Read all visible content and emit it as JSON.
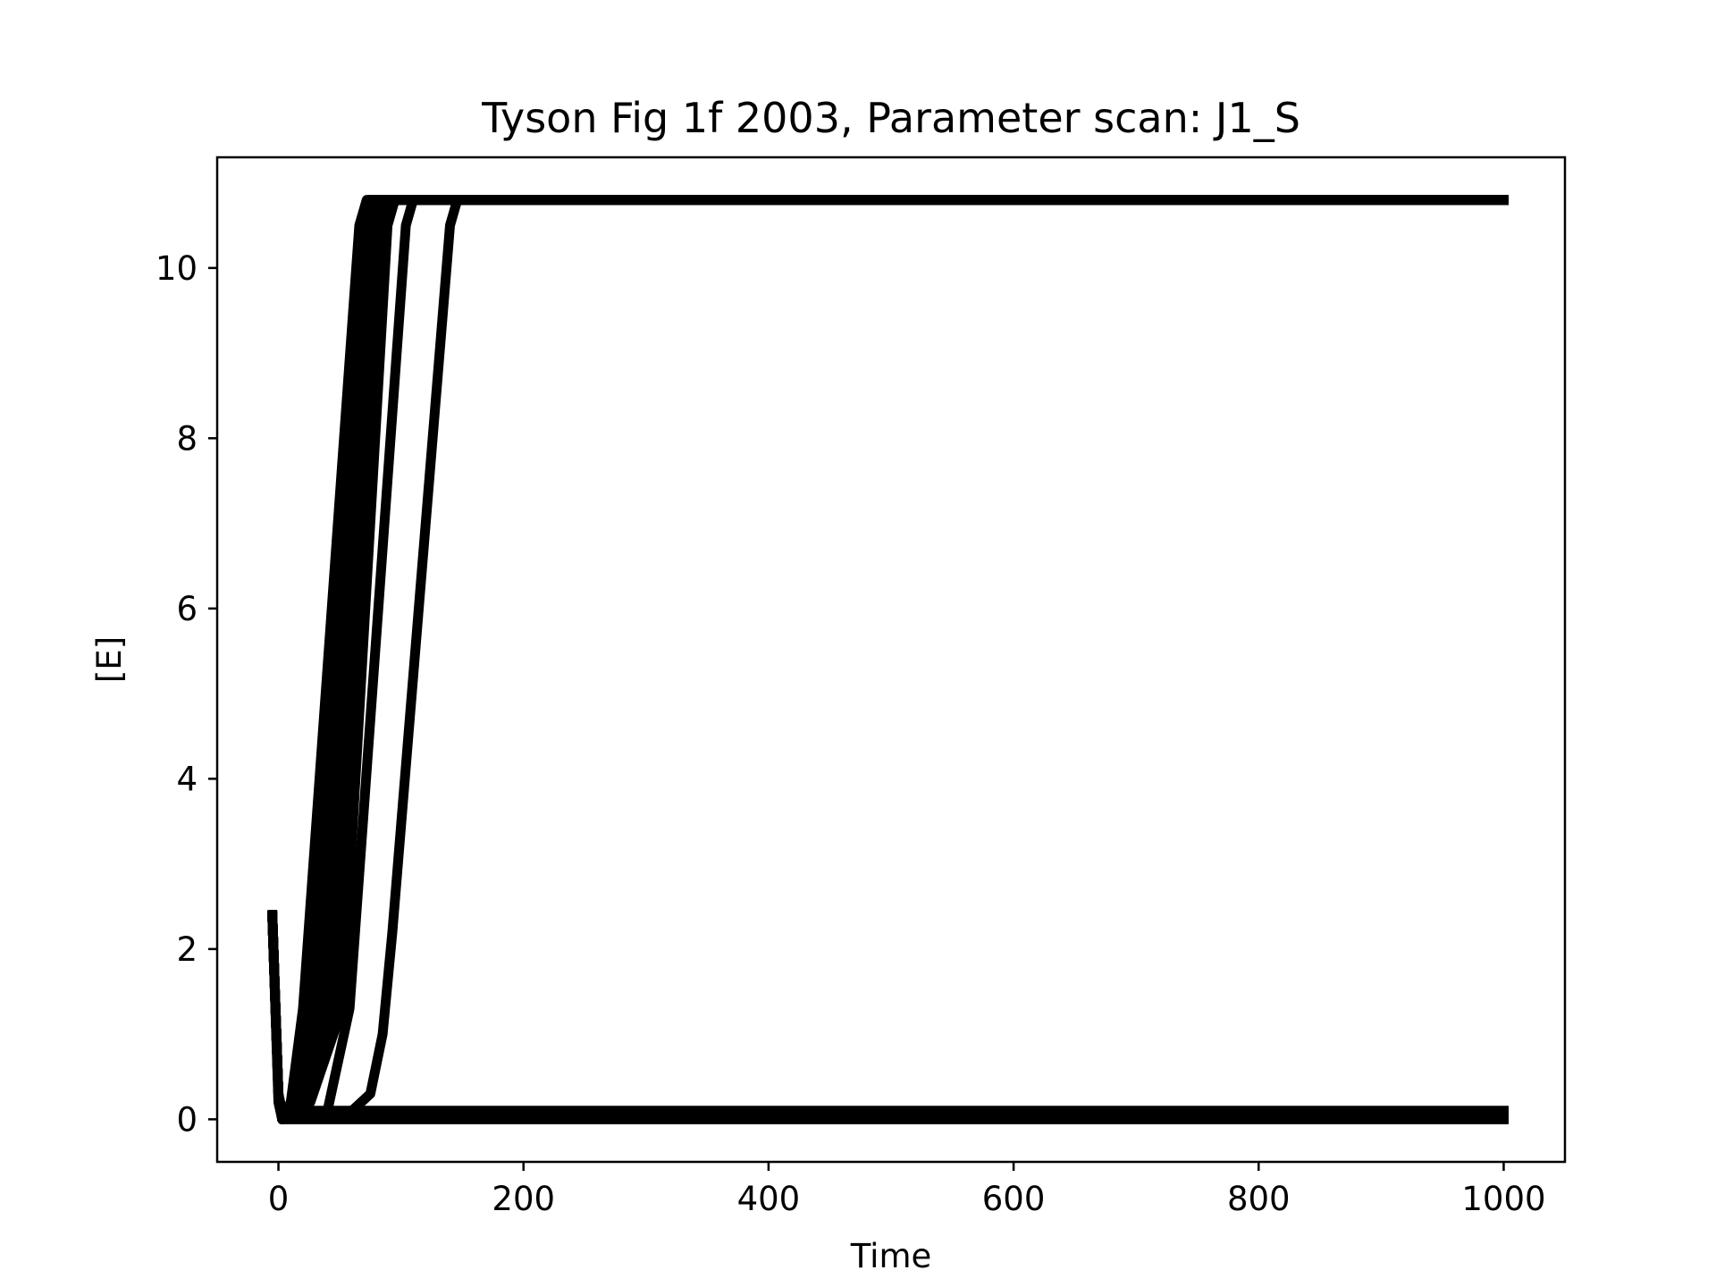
{
  "chart_data": {
    "type": "line",
    "title": "Tyson Fig 1f 2003, Parameter scan: J1_S",
    "xlabel": "Time",
    "ylabel": "[E]",
    "xlim": [
      -50,
      1050
    ],
    "ylim": [
      -0.5,
      11.3
    ],
    "xticks": [
      0,
      200,
      400,
      600,
      800,
      1000
    ],
    "yticks": [
      0,
      2,
      4,
      6,
      8,
      10
    ],
    "grid": false,
    "line_color": "#000000",
    "series": [
      {
        "x": [
          -5,
          0,
          3,
          1000
        ],
        "y": [
          2.4,
          0.3,
          0.1,
          0.1
        ]
      },
      {
        "x": [
          -5,
          0,
          3,
          1000
        ],
        "y": [
          2.4,
          0.2,
          0.0,
          0.0
        ]
      },
      {
        "x": [
          -5,
          0,
          3,
          10,
          20,
          66,
          72,
          1000
        ],
        "y": [
          2.4,
          0.3,
          0.0,
          0.2,
          1.3,
          10.5,
          10.8,
          10.8
        ]
      },
      {
        "x": [
          -5,
          0,
          3,
          12,
          24,
          68,
          74,
          1000
        ],
        "y": [
          2.4,
          0.3,
          0.0,
          0.2,
          1.3,
          10.5,
          10.8,
          10.8
        ]
      },
      {
        "x": [
          -5,
          0,
          3,
          14,
          28,
          71,
          77,
          1000
        ],
        "y": [
          2.4,
          0.3,
          0.0,
          0.2,
          1.3,
          10.5,
          10.8,
          10.8
        ]
      },
      {
        "x": [
          -5,
          0,
          3,
          16,
          32,
          74,
          80,
          1000
        ],
        "y": [
          2.4,
          0.3,
          0.0,
          0.2,
          1.3,
          10.5,
          10.8,
          10.8
        ]
      },
      {
        "x": [
          -5,
          0,
          3,
          18,
          36,
          77,
          83,
          1000
        ],
        "y": [
          2.4,
          0.3,
          0.0,
          0.2,
          1.3,
          10.5,
          10.8,
          10.8
        ]
      },
      {
        "x": [
          -5,
          0,
          3,
          20,
          40,
          80,
          86,
          1000
        ],
        "y": [
          2.4,
          0.3,
          0.0,
          0.2,
          1.3,
          10.5,
          10.8,
          10.8
        ]
      },
      {
        "x": [
          -5,
          0,
          3,
          22,
          44,
          83,
          89,
          1000
        ],
        "y": [
          2.4,
          0.3,
          0.0,
          0.2,
          1.3,
          10.5,
          10.8,
          10.8
        ]
      },
      {
        "x": [
          -5,
          0,
          3,
          24,
          48,
          86,
          92,
          1000
        ],
        "y": [
          2.4,
          0.3,
          0.0,
          0.2,
          1.3,
          10.5,
          10.8,
          10.8
        ]
      },
      {
        "x": [
          -5,
          0,
          3,
          26,
          52,
          89,
          95,
          1000
        ],
        "y": [
          2.4,
          0.3,
          0.0,
          0.2,
          1.3,
          10.5,
          10.8,
          10.8
        ]
      },
      {
        "x": [
          -5,
          0,
          3,
          40,
          58,
          104,
          110,
          1000
        ],
        "y": [
          2.4,
          0.3,
          0.0,
          0.1,
          1.3,
          10.5,
          10.8,
          10.8
        ]
      },
      {
        "x": [
          -5,
          0,
          3,
          60,
          75,
          85,
          93,
          140,
          146,
          1000
        ],
        "y": [
          2.4,
          0.3,
          0.0,
          0.1,
          0.3,
          1.0,
          2.2,
          10.5,
          10.8,
          10.8
        ]
      }
    ]
  }
}
